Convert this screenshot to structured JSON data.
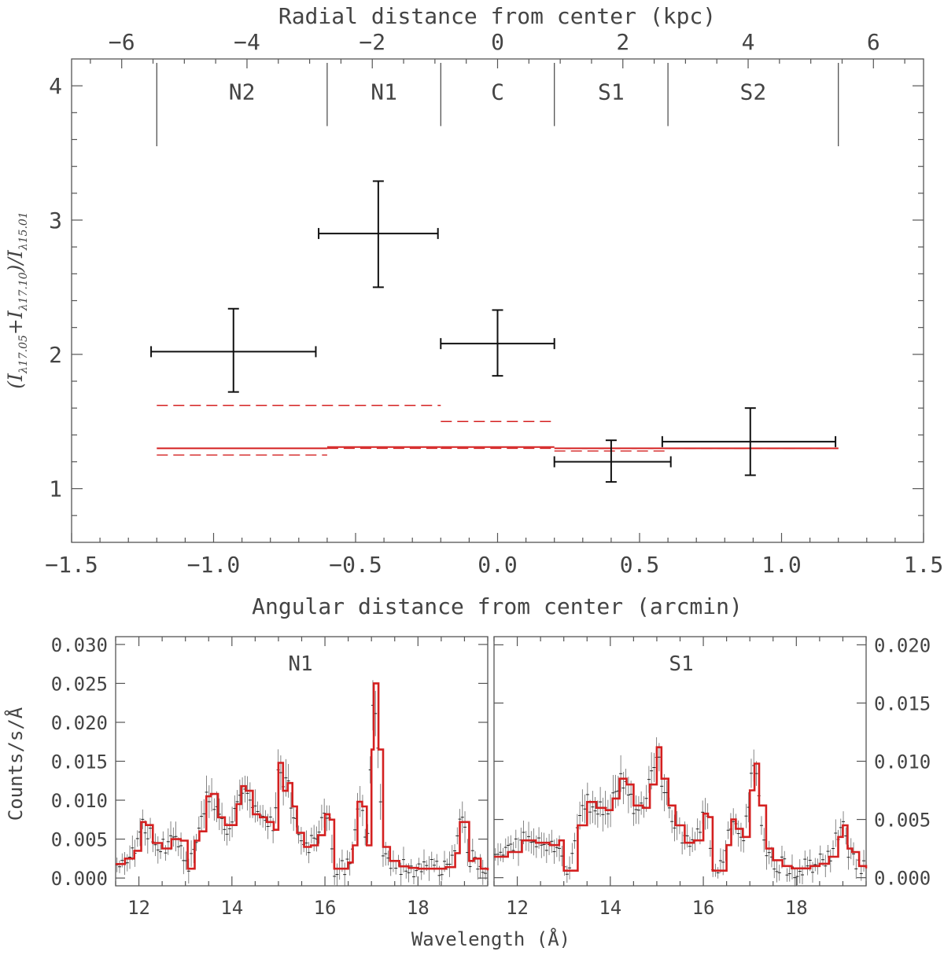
{
  "colors": {
    "data": "#111111",
    "model": "#d42020",
    "axis": "#555555",
    "noise": "#666666"
  },
  "chart_data": [
    {
      "type": "scatter",
      "title": "",
      "xlabel": "Angular distance from center (arcmin)",
      "x2label": "Radial distance from center (kpc)",
      "ylabel": "(I_λ17.05+I_λ17.10)/I_λ15.01",
      "ylabel_parts": {
        "open": "(",
        "a": "I",
        "a_sub": "λ17.05",
        "plus": "+",
        "b": "I",
        "b_sub": "λ17.10",
        "close": ")/",
        "c": "I",
        "c_sub": "λ15.01"
      },
      "xlim": [
        -1.5,
        1.5
      ],
      "ylim": [
        0.6,
        4.2
      ],
      "x2lim": [
        -6.8,
        6.8
      ],
      "xticks": [
        "−1.5",
        "−1.0",
        "−0.5",
        "0.0",
        "0.5",
        "1.0",
        "1.5"
      ],
      "xtick_values": [
        -1.5,
        -1.0,
        -0.5,
        0.0,
        0.5,
        1.0,
        1.5
      ],
      "yticks": [
        "1",
        "2",
        "3",
        "4"
      ],
      "ytick_values": [
        1,
        2,
        3,
        4
      ],
      "x2ticks": [
        "−6",
        "−4",
        "−2",
        "0",
        "2",
        "4",
        "6"
      ],
      "x2tick_values": [
        -6,
        -4,
        -2,
        0,
        2,
        4,
        6
      ],
      "regions": [
        {
          "label": "N2",
          "x0": -1.2,
          "x1": -0.6
        },
        {
          "label": "N1",
          "x0": -0.6,
          "x1": -0.2
        },
        {
          "label": "C",
          "x0": -0.2,
          "x1": 0.2
        },
        {
          "label": "S1",
          "x0": 0.2,
          "x1": 0.6
        },
        {
          "label": "S2",
          "x0": 0.6,
          "x1": 1.2
        }
      ],
      "series": [
        {
          "name": "measured ratio",
          "points": [
            {
              "x": -0.93,
              "xlo": -1.22,
              "xhi": -0.64,
              "y": 2.02,
              "ylo": 1.72,
              "yhi": 2.34
            },
            {
              "x": -0.42,
              "xlo": -0.63,
              "xhi": -0.21,
              "y": 2.9,
              "ylo": 2.5,
              "yhi": 3.29
            },
            {
              "x": 0.0,
              "xlo": -0.2,
              "xhi": 0.2,
              "y": 2.08,
              "ylo": 1.84,
              "yhi": 2.33
            },
            {
              "x": 0.4,
              "xlo": 0.2,
              "xhi": 0.61,
              "y": 1.2,
              "ylo": 1.05,
              "yhi": 1.36
            },
            {
              "x": 0.89,
              "xlo": 0.58,
              "xhi": 1.19,
              "y": 1.35,
              "ylo": 1.1,
              "yhi": 1.6
            }
          ]
        },
        {
          "name": "model (solid)",
          "segments": [
            {
              "x0": -1.2,
              "x1": -0.6,
              "y": 1.3
            },
            {
              "x0": -0.6,
              "x1": -0.2,
              "y": 1.31
            },
            {
              "x0": -0.2,
              "x1": 0.2,
              "y": 1.31
            },
            {
              "x0": 0.2,
              "x1": 0.6,
              "y": 1.3
            },
            {
              "x0": 0.6,
              "x1": 1.2,
              "y": 1.3
            }
          ]
        },
        {
          "name": "model (dashed)",
          "segments": [
            {
              "x0": -1.2,
              "x1": -0.2,
              "y": 1.62
            },
            {
              "x0": -1.2,
              "x1": -0.6,
              "y": 1.25
            },
            {
              "x0": -0.6,
              "x1": -0.2,
              "y": 1.3
            },
            {
              "x0": -0.2,
              "x1": 0.2,
              "y": 1.5
            },
            {
              "x0": -0.2,
              "x1": 0.2,
              "y": 1.3
            },
            {
              "x0": 0.2,
              "x1": 0.6,
              "y": 1.28
            },
            {
              "x0": 0.6,
              "x1": 1.2,
              "y": 1.3
            }
          ]
        }
      ]
    },
    {
      "type": "line",
      "title": "",
      "label": "N1",
      "xlabel": "Wavelength (Å)",
      "ylabel": "Counts/s/Å",
      "xlim": [
        11.5,
        19.5
      ],
      "ylim": [
        -0.001,
        0.031
      ],
      "xticks": [
        "12",
        "14",
        "16",
        "18"
      ],
      "xtick_values": [
        12,
        14,
        16,
        18
      ],
      "yticks": [
        "0.000",
        "0.005",
        "0.010",
        "0.015",
        "0.020",
        "0.025",
        "0.030"
      ],
      "ytick_values": [
        0.0,
        0.005,
        0.01,
        0.015,
        0.02,
        0.025,
        0.03
      ],
      "series": [
        {
          "name": "model",
          "x": [
            11.5,
            11.7,
            11.9,
            12.05,
            12.15,
            12.3,
            12.5,
            12.7,
            12.9,
            13.05,
            13.1,
            13.2,
            13.3,
            13.45,
            13.55,
            13.7,
            13.85,
            14.0,
            14.1,
            14.2,
            14.3,
            14.45,
            14.6,
            14.75,
            14.9,
            15.0,
            15.1,
            15.2,
            15.3,
            15.4,
            15.55,
            15.7,
            15.85,
            16.0,
            16.1,
            16.2,
            16.35,
            16.5,
            16.6,
            16.7,
            16.8,
            16.9,
            17.0,
            17.05,
            17.15,
            17.25,
            17.4,
            17.6,
            17.8,
            18.0,
            18.2,
            18.4,
            18.6,
            18.8,
            18.9,
            19.0,
            19.1,
            19.2,
            19.35,
            19.5
          ],
          "values": [
            0.0018,
            0.0025,
            0.0035,
            0.0072,
            0.0068,
            0.0045,
            0.0038,
            0.005,
            0.0048,
            0.0012,
            0.0012,
            0.0048,
            0.006,
            0.0105,
            0.0108,
            0.0078,
            0.0068,
            0.0068,
            0.0095,
            0.0118,
            0.0112,
            0.0082,
            0.0078,
            0.0072,
            0.0062,
            0.0148,
            0.0112,
            0.0122,
            0.0092,
            0.0058,
            0.004,
            0.0042,
            0.0055,
            0.0082,
            0.0075,
            0.0012,
            0.0012,
            0.002,
            0.0042,
            0.0098,
            0.0092,
            0.0042,
            0.0165,
            0.025,
            0.0165,
            0.004,
            0.0022,
            0.0015,
            0.0013,
            0.0012,
            0.0012,
            0.0012,
            0.0014,
            0.0032,
            0.0072,
            0.0072,
            0.0022,
            0.0025,
            0.0012,
            0.001
          ]
        }
      ]
    },
    {
      "type": "line",
      "title": "",
      "label": "S1",
      "xlabel": "Wavelength (Å)",
      "ylabel": "Counts/s/Å",
      "xlim": [
        11.5,
        19.5
      ],
      "ylim": [
        -0.0007,
        0.0207
      ],
      "xticks": [
        "12",
        "14",
        "16",
        "18"
      ],
      "xtick_values": [
        12,
        14,
        16,
        18
      ],
      "yticks": [
        "0.000",
        "0.005",
        "0.010",
        "0.015",
        "0.020"
      ],
      "ytick_values": [
        0.0,
        0.005,
        0.01,
        0.015,
        0.02
      ],
      "series": [
        {
          "name": "model",
          "x": [
            11.5,
            11.8,
            12.1,
            12.4,
            12.7,
            12.9,
            13.0,
            13.1,
            13.3,
            13.5,
            13.7,
            13.9,
            14.05,
            14.2,
            14.35,
            14.5,
            14.7,
            14.85,
            15.0,
            15.1,
            15.25,
            15.4,
            15.6,
            15.8,
            16.0,
            16.1,
            16.2,
            16.35,
            16.5,
            16.6,
            16.7,
            16.85,
            17.0,
            17.1,
            17.2,
            17.35,
            17.5,
            17.7,
            17.9,
            18.1,
            18.3,
            18.5,
            18.7,
            18.9,
            19.0,
            19.1,
            19.2,
            19.35,
            19.5
          ],
          "values": [
            0.0018,
            0.0022,
            0.0032,
            0.003,
            0.0028,
            0.0032,
            0.0006,
            0.0006,
            0.0045,
            0.0065,
            0.006,
            0.0058,
            0.0068,
            0.0085,
            0.008,
            0.0062,
            0.006,
            0.008,
            0.0112,
            0.0085,
            0.0062,
            0.0045,
            0.003,
            0.0032,
            0.0055,
            0.0052,
            0.0006,
            0.0006,
            0.0028,
            0.005,
            0.0042,
            0.0035,
            0.0075,
            0.0098,
            0.0062,
            0.0025,
            0.0015,
            0.001,
            0.0008,
            0.0008,
            0.001,
            0.0012,
            0.0018,
            0.0035,
            0.0045,
            0.0025,
            0.0022,
            0.001,
            0.0008
          ]
        }
      ]
    }
  ]
}
